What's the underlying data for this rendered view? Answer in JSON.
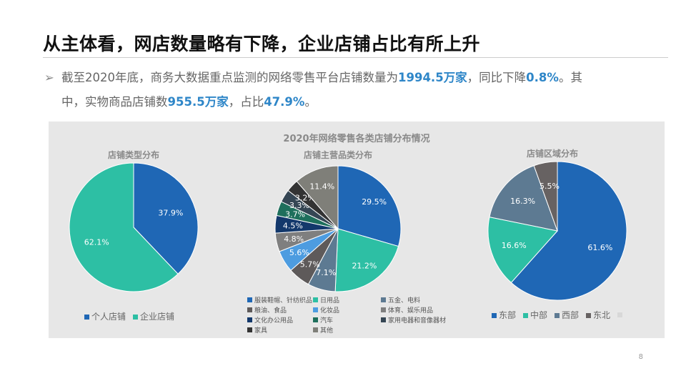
{
  "title": "从主体看，网店数量略有下降，企业店铺占比有所上升",
  "paragraph": {
    "t1": "截至2020年底，商务大数据重点监测的网络零售平台店铺数量为",
    "h1": "1994.5万家",
    "t2": "，同比下降",
    "h2": "0.8%",
    "t3": "。其",
    "t4": "中，实物商品店铺数",
    "h3": "955.5万家",
    "t5": "，占比",
    "h4": "47.9%",
    "t6": "。"
  },
  "panel_title": "2020年网络零售各类店铺分布情况",
  "page_number": "8",
  "chart_data": [
    {
      "type": "pie",
      "title": "店铺类型分布",
      "categories": [
        "个人店铺",
        "企业店铺"
      ],
      "values": [
        37.9,
        62.1
      ],
      "colors": [
        "#1f67b5",
        "#2dbfa4"
      ],
      "labels": [
        "37.9%",
        "62.1%"
      ],
      "legend": "bottom"
    },
    {
      "type": "pie",
      "title": "店铺主营品类分布",
      "categories": [
        "服装鞋帽、针纺织品",
        "日用品",
        "五金、电料",
        "粮油、食品",
        "化妆品",
        "体育、娱乐用品",
        "文化办公用品",
        "汽车",
        "家用电器和音像器材",
        "家具",
        "其他"
      ],
      "values": [
        29.5,
        21.2,
        7.1,
        5.7,
        5.6,
        4.8,
        4.5,
        3.7,
        3.3,
        3.2,
        11.4
      ],
      "colors": [
        "#1f67b5",
        "#2dbfa4",
        "#5d7a92",
        "#5e5a5a",
        "#4d9ce0",
        "#7f7f7f",
        "#13386b",
        "#1e6f5c",
        "#354654",
        "#333333",
        "#7f7f79"
      ],
      "labels": [
        "29.5%",
        "21.2%",
        "7.1%",
        "5.7%",
        "5.6%",
        "4.8%",
        "4.5%",
        "3.7%",
        "3.3%",
        "3.2%",
        "11.4%"
      ],
      "legend": "bottom"
    },
    {
      "type": "pie",
      "title": "店铺区域分布",
      "categories": [
        "东部",
        "中部",
        "西部",
        "东北"
      ],
      "values": [
        61.6,
        16.6,
        16.3,
        5.5
      ],
      "colors": [
        "#1f67b5",
        "#2dbfa4",
        "#5d7a92",
        "#676262"
      ],
      "labels": [
        "61.6%",
        "16.6%",
        "16.3%",
        "5.5%"
      ],
      "legend": "bottom"
    }
  ]
}
